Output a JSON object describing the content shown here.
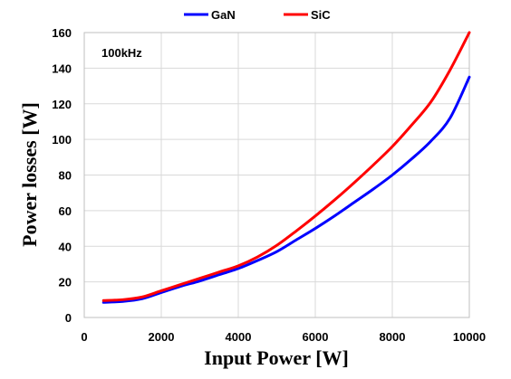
{
  "chart_data": {
    "type": "line",
    "title": "",
    "xlabel": "Input Power [W]",
    "ylabel": "Power losses [W]",
    "xlim": [
      0,
      10000
    ],
    "ylim": [
      0,
      160
    ],
    "x_ticks": [
      "0",
      "2000",
      "4000",
      "6000",
      "8000",
      "10000"
    ],
    "y_ticks": [
      "0",
      "20",
      "40",
      "60",
      "80",
      "100",
      "120",
      "140",
      "160"
    ],
    "grid": true,
    "legend_position": "top-center",
    "annotation": "100kHz",
    "series": [
      {
        "name": "GaN",
        "color": "#0000ff",
        "x": [
          500,
          1000,
          1500,
          2000,
          2500,
          3000,
          3500,
          4000,
          4500,
          5000,
          5500,
          6000,
          6500,
          7000,
          7500,
          8000,
          8500,
          9000,
          9500,
          10000
        ],
        "y": [
          8.5,
          9,
          10.5,
          14,
          17.5,
          20.5,
          24,
          27.5,
          32,
          37,
          43.5,
          50,
          57,
          64.5,
          72,
          80,
          89,
          99,
          112,
          135
        ]
      },
      {
        "name": "SiC",
        "color": "#ff0000",
        "x": [
          500,
          1000,
          1500,
          2000,
          2500,
          3000,
          3500,
          4000,
          4500,
          5000,
          5500,
          6000,
          6500,
          7000,
          7500,
          8000,
          8500,
          9000,
          9500,
          10000
        ],
        "y": [
          9.5,
          10,
          11.5,
          15,
          18.5,
          22,
          25.5,
          29,
          34,
          40.5,
          48.5,
          57,
          66,
          75.5,
          85.5,
          96,
          108,
          121,
          139,
          160
        ]
      }
    ]
  }
}
